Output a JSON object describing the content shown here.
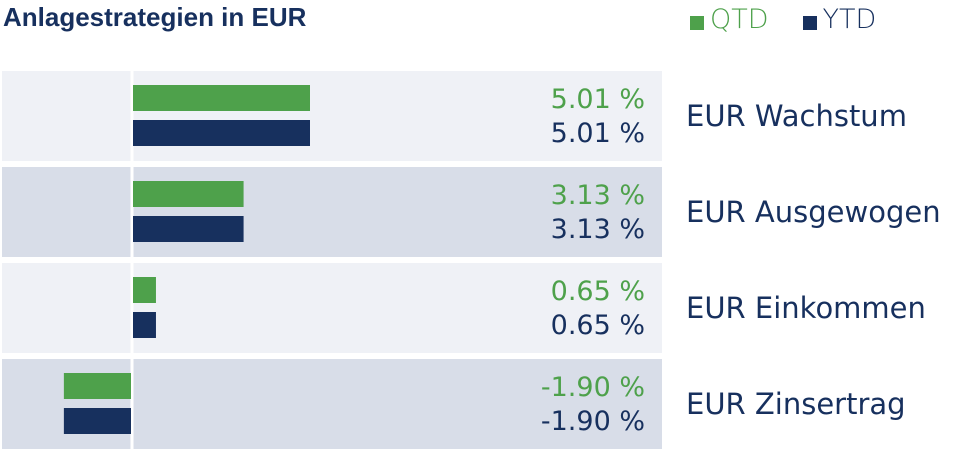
{
  "title": "Anlagestrategien in EUR",
  "legend": {
    "qtd_label": "QTD",
    "ytd_label": "YTD"
  },
  "colors": {
    "qtd": "#4ea14b",
    "ytd": "#17305e",
    "row_light": "#eff1f6",
    "row_dark": "#d8dde8"
  },
  "chart_data": {
    "type": "bar",
    "orientation": "horizontal",
    "title": "Anlagestrategien in EUR",
    "categories": [
      "EUR Wachstum",
      "EUR Ausgewogen",
      "EUR Einkommen",
      "EUR Zinsertrag"
    ],
    "series": [
      {
        "name": "QTD",
        "values": [
          5.01,
          3.13,
          0.65,
          -1.9
        ],
        "labels": [
          "5.01 %",
          "3.13 %",
          "0.65 %",
          "-1.90 %"
        ]
      },
      {
        "name": "YTD",
        "values": [
          5.01,
          3.13,
          0.65,
          -1.9
        ],
        "labels": [
          "5.01 %",
          "3.13 %",
          "0.65 %",
          "-1.90 %"
        ]
      }
    ],
    "legend_position": "top-right"
  }
}
